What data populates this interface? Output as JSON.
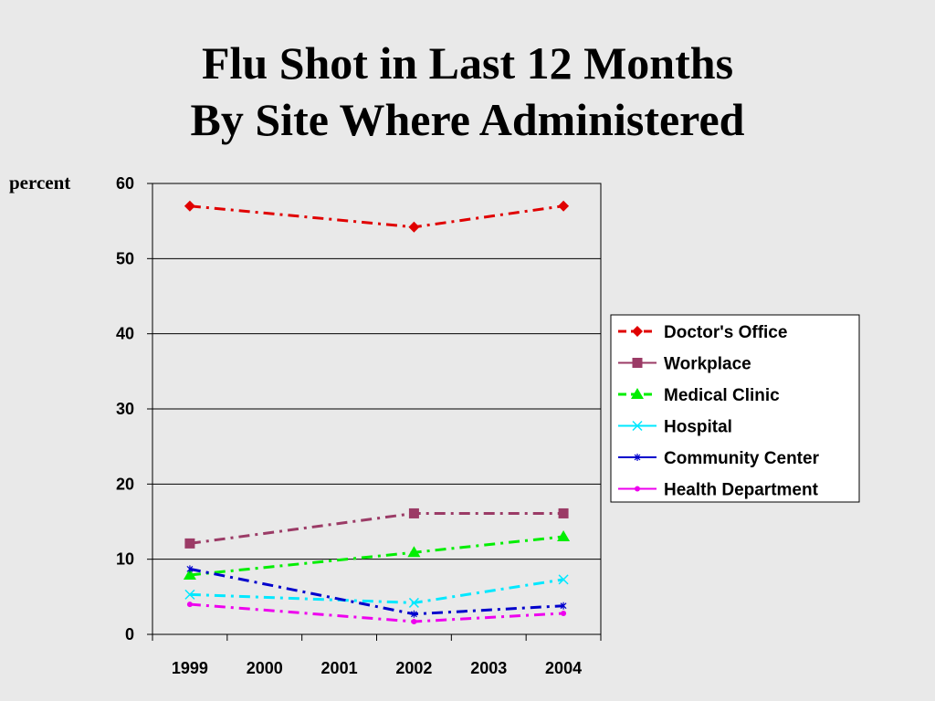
{
  "chart_data": {
    "type": "line",
    "title_line1": "Flu Shot in Last 12 Months",
    "title_line2": "By Site Where Administered",
    "ylabel": "percent",
    "ylim": [
      0,
      60
    ],
    "yticks": [
      0,
      10,
      20,
      30,
      40,
      50,
      60
    ],
    "x": [
      1999,
      2000,
      2001,
      2002,
      2003,
      2004
    ],
    "grid": "horizontal",
    "legend_position": "right",
    "series": [
      {
        "name": "Doctor's Office",
        "color": "#e00000",
        "marker": "diamond",
        "points": [
          [
            1999,
            57
          ],
          [
            2002,
            54.2
          ],
          [
            2004,
            57
          ]
        ]
      },
      {
        "name": "Workplace",
        "color": "#9b3b66",
        "marker": "square",
        "points": [
          [
            1999,
            12.1
          ],
          [
            2002,
            16.1
          ],
          [
            2004,
            16.1
          ]
        ]
      },
      {
        "name": "Medical Clinic",
        "color": "#00ee00",
        "marker": "triangle",
        "points": [
          [
            1999,
            7.9
          ],
          [
            2002,
            10.9
          ],
          [
            2004,
            13
          ]
        ]
      },
      {
        "name": "Hospital",
        "color": "#00e8ff",
        "marker": "x",
        "points": [
          [
            1999,
            5.3
          ],
          [
            2002,
            4.2
          ],
          [
            2004,
            7.3
          ]
        ]
      },
      {
        "name": "Community Center",
        "color": "#0000cc",
        "marker": "star",
        "points": [
          [
            1999,
            8.7
          ],
          [
            2002,
            2.7
          ],
          [
            2004,
            3.8
          ]
        ]
      },
      {
        "name": "Health Department",
        "color": "#ee00ee",
        "marker": "circle",
        "points": [
          [
            1999,
            4
          ],
          [
            2002,
            1.7
          ],
          [
            2004,
            2.8
          ]
        ]
      }
    ]
  }
}
